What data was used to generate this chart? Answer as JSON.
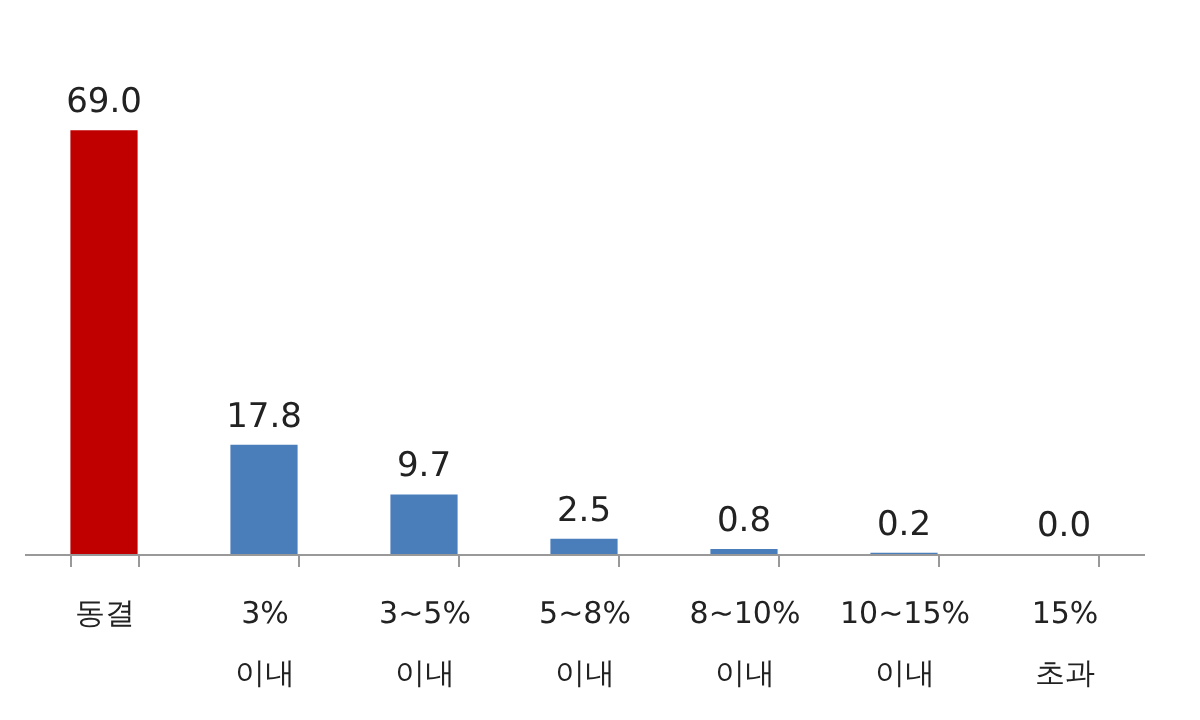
{
  "chart_data": {
    "type": "bar",
    "categories": [
      "동결",
      "3% 이내",
      "3~5% 이내",
      "5~8% 이내",
      "8~10% 이내",
      "10~15% 이내",
      "15% 초과"
    ],
    "values": [
      69.0,
      17.8,
      9.7,
      2.5,
      0.8,
      0.2,
      0.0
    ],
    "colors": [
      "#c00000",
      "#4a7ebb",
      "#4a7ebb",
      "#4a7ebb",
      "#4a7ebb",
      "#4a7ebb",
      "#4a7ebb"
    ],
    "value_labels": [
      "69.0",
      "17.8",
      "9.7",
      "2.5",
      "0.8",
      "0.2",
      "0.0"
    ],
    "grid": false
  }
}
